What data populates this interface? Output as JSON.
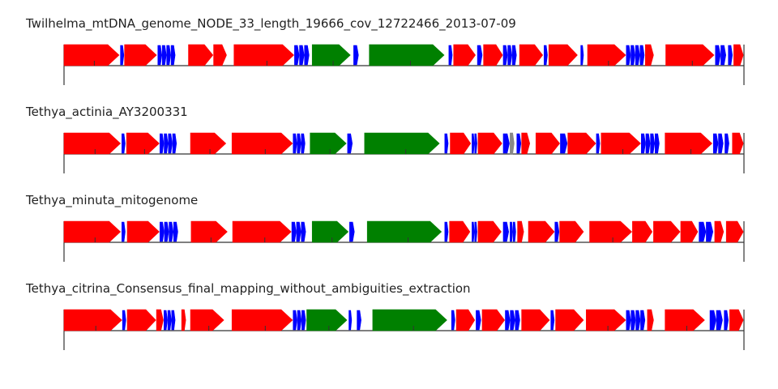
{
  "colors": {
    "protein": "#ff0000",
    "trna": "#0000ff",
    "rrna": "#008000",
    "other": "#888888",
    "line": "#333333"
  },
  "tracks": [
    {
      "title": "Twilhelma_mtDNA_genome_NODE_33_length_19666_cov_12722466_2013-07-09",
      "features": [
        {
          "start": 0,
          "end": 8.1,
          "type": "protein"
        },
        {
          "start": 8.3,
          "end": 8.8,
          "type": "trna"
        },
        {
          "start": 8.9,
          "end": 13.6,
          "type": "protein"
        },
        {
          "start": 13.8,
          "end": 16.4,
          "type": "trna",
          "count": 4
        },
        {
          "start": 18.3,
          "end": 21.9,
          "type": "protein"
        },
        {
          "start": 22.0,
          "end": 23.9,
          "type": "protein"
        },
        {
          "start": 25.0,
          "end": 33.8,
          "type": "protein"
        },
        {
          "start": 33.9,
          "end": 36.1,
          "type": "trna",
          "count": 3
        },
        {
          "start": 36.5,
          "end": 42.1,
          "type": "rrna"
        },
        {
          "start": 42.6,
          "end": 43.3,
          "type": "trna"
        },
        {
          "start": 44.9,
          "end": 55.9,
          "type": "rrna"
        },
        {
          "start": 56.6,
          "end": 57.1,
          "type": "trna"
        },
        {
          "start": 57.3,
          "end": 60.5,
          "type": "protein"
        },
        {
          "start": 60.8,
          "end": 61.5,
          "type": "trna"
        },
        {
          "start": 61.7,
          "end": 64.5,
          "type": "protein"
        },
        {
          "start": 64.6,
          "end": 66.6,
          "type": "trna",
          "count": 3
        },
        {
          "start": 67.0,
          "end": 70.4,
          "type": "protein"
        },
        {
          "start": 70.6,
          "end": 71.1,
          "type": "trna"
        },
        {
          "start": 71.3,
          "end": 75.5,
          "type": "protein"
        },
        {
          "start": 76.0,
          "end": 76.4,
          "type": "trna"
        },
        {
          "start": 77.0,
          "end": 82.6,
          "type": "protein"
        },
        {
          "start": 82.7,
          "end": 85.4,
          "type": "trna",
          "count": 4
        },
        {
          "start": 85.5,
          "end": 86.7,
          "type": "protein"
        },
        {
          "start": 88.5,
          "end": 95.6,
          "type": "protein"
        },
        {
          "start": 95.8,
          "end": 97.4,
          "type": "trna",
          "count": 2
        },
        {
          "start": 97.7,
          "end": 98.3,
          "type": "trna"
        },
        {
          "start": 98.5,
          "end": 99.9,
          "type": "protein"
        }
      ]
    },
    {
      "title": "Tethya_actinia_AY3200331",
      "features": [
        {
          "start": 0,
          "end": 8.3,
          "type": "protein"
        },
        {
          "start": 8.5,
          "end": 9.0,
          "type": "trna"
        },
        {
          "start": 9.2,
          "end": 14.0,
          "type": "protein"
        },
        {
          "start": 14.1,
          "end": 16.6,
          "type": "trna",
          "count": 4
        },
        {
          "start": 18.6,
          "end": 23.8,
          "type": "protein"
        },
        {
          "start": 24.7,
          "end": 33.6,
          "type": "protein"
        },
        {
          "start": 33.7,
          "end": 35.5,
          "type": "trna",
          "count": 3
        },
        {
          "start": 36.2,
          "end": 41.5,
          "type": "rrna"
        },
        {
          "start": 41.7,
          "end": 42.4,
          "type": "trna"
        },
        {
          "start": 44.2,
          "end": 55.2,
          "type": "rrna"
        },
        {
          "start": 56.0,
          "end": 56.5,
          "type": "trna"
        },
        {
          "start": 56.8,
          "end": 59.8,
          "type": "protein"
        },
        {
          "start": 60.0,
          "end": 60.8,
          "type": "trna",
          "count": 2
        },
        {
          "start": 60.9,
          "end": 64.4,
          "type": "protein"
        },
        {
          "start": 64.6,
          "end": 65.5,
          "type": "trna"
        },
        {
          "start": 65.6,
          "end": 66.2,
          "type": "other"
        },
        {
          "start": 66.6,
          "end": 67.2,
          "type": "trna"
        },
        {
          "start": 67.3,
          "end": 68.5,
          "type": "protein"
        },
        {
          "start": 69.4,
          "end": 72.9,
          "type": "protein"
        },
        {
          "start": 73.0,
          "end": 74.0,
          "type": "trna"
        },
        {
          "start": 74.1,
          "end": 78.2,
          "type": "protein"
        },
        {
          "start": 78.3,
          "end": 78.8,
          "type": "trna"
        },
        {
          "start": 79.0,
          "end": 84.8,
          "type": "protein"
        },
        {
          "start": 84.9,
          "end": 87.6,
          "type": "trna",
          "count": 4
        },
        {
          "start": 88.4,
          "end": 95.3,
          "type": "protein"
        },
        {
          "start": 95.5,
          "end": 97.0,
          "type": "trna",
          "count": 2
        },
        {
          "start": 97.2,
          "end": 97.8,
          "type": "trna"
        },
        {
          "start": 98.3,
          "end": 99.9,
          "type": "protein"
        }
      ]
    },
    {
      "title": "Tethya_minuta_mitogenome",
      "features": [
        {
          "start": 0,
          "end": 8.3,
          "type": "protein"
        },
        {
          "start": 8.5,
          "end": 9.0,
          "type": "trna"
        },
        {
          "start": 9.3,
          "end": 14.0,
          "type": "protein"
        },
        {
          "start": 14.1,
          "end": 16.8,
          "type": "trna",
          "count": 4
        },
        {
          "start": 18.7,
          "end": 24.0,
          "type": "protein"
        },
        {
          "start": 24.8,
          "end": 33.4,
          "type": "protein"
        },
        {
          "start": 33.5,
          "end": 35.6,
          "type": "trna",
          "count": 3
        },
        {
          "start": 36.5,
          "end": 41.8,
          "type": "rrna"
        },
        {
          "start": 42.0,
          "end": 42.7,
          "type": "trna"
        },
        {
          "start": 44.6,
          "end": 55.5,
          "type": "rrna"
        },
        {
          "start": 56.0,
          "end": 56.5,
          "type": "trna"
        },
        {
          "start": 56.7,
          "end": 59.7,
          "type": "protein"
        },
        {
          "start": 60.0,
          "end": 60.8,
          "type": "trna",
          "count": 2
        },
        {
          "start": 60.9,
          "end": 64.3,
          "type": "protein"
        },
        {
          "start": 64.6,
          "end": 65.4,
          "type": "trna"
        },
        {
          "start": 65.6,
          "end": 66.5,
          "type": "trna",
          "count": 2
        },
        {
          "start": 66.7,
          "end": 67.6,
          "type": "protein"
        },
        {
          "start": 68.3,
          "end": 72.1,
          "type": "protein"
        },
        {
          "start": 72.2,
          "end": 72.8,
          "type": "trna"
        },
        {
          "start": 72.9,
          "end": 76.4,
          "type": "protein"
        },
        {
          "start": 77.3,
          "end": 83.5,
          "type": "protein"
        },
        {
          "start": 83.6,
          "end": 86.5,
          "type": "protein"
        },
        {
          "start": 86.7,
          "end": 90.6,
          "type": "protein"
        },
        {
          "start": 90.7,
          "end": 93.2,
          "type": "protein"
        },
        {
          "start": 93.4,
          "end": 95.5,
          "type": "trna",
          "count": 2
        },
        {
          "start": 95.7,
          "end": 97.0,
          "type": "protein"
        },
        {
          "start": 97.4,
          "end": 99.9,
          "type": "protein"
        }
      ]
    },
    {
      "title": "Tethya_citrina_Consensus_final_mapping_without_ambiguities_extraction",
      "features": [
        {
          "start": 0,
          "end": 8.5,
          "type": "protein"
        },
        {
          "start": 8.6,
          "end": 9.1,
          "type": "trna"
        },
        {
          "start": 9.3,
          "end": 13.5,
          "type": "protein"
        },
        {
          "start": 13.6,
          "end": 14.6,
          "type": "protein"
        },
        {
          "start": 14.7,
          "end": 16.4,
          "type": "trna",
          "count": 3
        },
        {
          "start": 17.3,
          "end": 17.9,
          "type": "protein"
        },
        {
          "start": 18.6,
          "end": 23.5,
          "type": "protein"
        },
        {
          "start": 24.7,
          "end": 33.6,
          "type": "protein"
        },
        {
          "start": 33.7,
          "end": 35.6,
          "type": "trna",
          "count": 3
        },
        {
          "start": 35.7,
          "end": 41.6,
          "type": "rrna"
        },
        {
          "start": 41.9,
          "end": 42.3,
          "type": "trna"
        },
        {
          "start": 43.1,
          "end": 43.7,
          "type": "trna"
        },
        {
          "start": 45.4,
          "end": 56.3,
          "type": "rrna"
        },
        {
          "start": 57.0,
          "end": 57.5,
          "type": "trna"
        },
        {
          "start": 57.7,
          "end": 60.4,
          "type": "protein"
        },
        {
          "start": 60.6,
          "end": 61.3,
          "type": "trna"
        },
        {
          "start": 61.5,
          "end": 64.8,
          "type": "protein"
        },
        {
          "start": 64.9,
          "end": 67.1,
          "type": "trna",
          "count": 3
        },
        {
          "start": 67.3,
          "end": 71.4,
          "type": "protein"
        },
        {
          "start": 71.6,
          "end": 72.1,
          "type": "trna"
        },
        {
          "start": 72.3,
          "end": 76.4,
          "type": "protein"
        },
        {
          "start": 76.8,
          "end": 82.6,
          "type": "protein"
        },
        {
          "start": 82.7,
          "end": 85.5,
          "type": "trna",
          "count": 4
        },
        {
          "start": 85.8,
          "end": 86.7,
          "type": "protein"
        },
        {
          "start": 88.4,
          "end": 94.2,
          "type": "protein"
        },
        {
          "start": 95.0,
          "end": 96.9,
          "type": "trna",
          "count": 2
        },
        {
          "start": 97.1,
          "end": 97.7,
          "type": "trna"
        },
        {
          "start": 97.9,
          "end": 99.9,
          "type": "protein"
        }
      ]
    }
  ]
}
